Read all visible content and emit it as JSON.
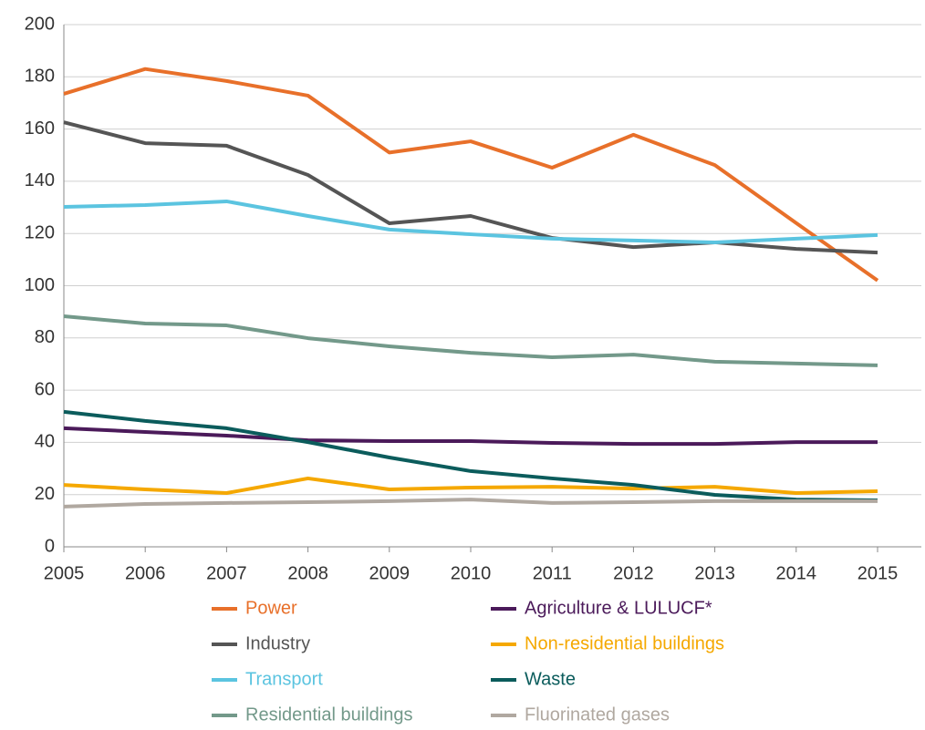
{
  "chart_data": {
    "type": "line",
    "x": [
      2005,
      2006,
      2007,
      2008,
      2009,
      2010,
      2011,
      2012,
      2013,
      2014,
      2015
    ],
    "xlim": [
      2005,
      2015
    ],
    "xticks": [
      2005,
      2006,
      2007,
      2008,
      2009,
      2010,
      2011,
      2012,
      2013,
      2014,
      2015
    ],
    "ylim": [
      0,
      200
    ],
    "yticks": [
      0,
      20,
      40,
      60,
      80,
      100,
      120,
      140,
      160,
      180,
      200
    ],
    "grid": true,
    "legend": "bottom",
    "series": [
      {
        "name": "Power",
        "color": "#e8702a",
        "values": [
          173.5,
          183,
          178.4,
          172.8,
          151,
          155.3,
          145.2,
          157.8,
          146.2,
          124,
          102
        ]
      },
      {
        "name": "Agriculture & LULUCF*",
        "color": "#4b1a5a",
        "values": [
          45.4,
          44,
          42.6,
          40.8,
          40.5,
          40.5,
          39.8,
          39.4,
          39.4,
          40.1,
          40.1
        ]
      },
      {
        "name": "Industry",
        "color": "#555555",
        "values": [
          162.6,
          154.6,
          153.6,
          142.4,
          123.9,
          126.7,
          118.3,
          114.8,
          116.6,
          114.1,
          112.7
        ]
      },
      {
        "name": "Non-residential buildings",
        "color": "#f5a800",
        "values": [
          23.7,
          22,
          20.6,
          26.2,
          22,
          22.7,
          23,
          22.3,
          23,
          20.6,
          21.3
        ]
      },
      {
        "name": "Transport",
        "color": "#5bc4e0",
        "values": [
          130.2,
          130.9,
          132.3,
          126.7,
          121.5,
          119.7,
          118,
          117.3,
          116.6,
          118,
          119.4
        ]
      },
      {
        "name": "Waste",
        "color": "#0b5c5c",
        "values": [
          51.7,
          48.2,
          45.4,
          40.1,
          34.2,
          29,
          26.2,
          23.7,
          19.9,
          18.1,
          17.8
        ]
      },
      {
        "name": "Residential buildings",
        "color": "#73998a",
        "values": [
          88.3,
          85.5,
          84.8,
          79.9,
          76.8,
          74.3,
          72.6,
          73.6,
          70.9,
          70.2,
          69.5
        ]
      },
      {
        "name": "Fluorinated gases",
        "color": "#b0a8a0",
        "values": [
          15.4,
          16.4,
          16.8,
          17.1,
          17.5,
          18.1,
          16.8,
          17.1,
          17.5,
          17.5,
          17.5
        ]
      }
    ]
  }
}
